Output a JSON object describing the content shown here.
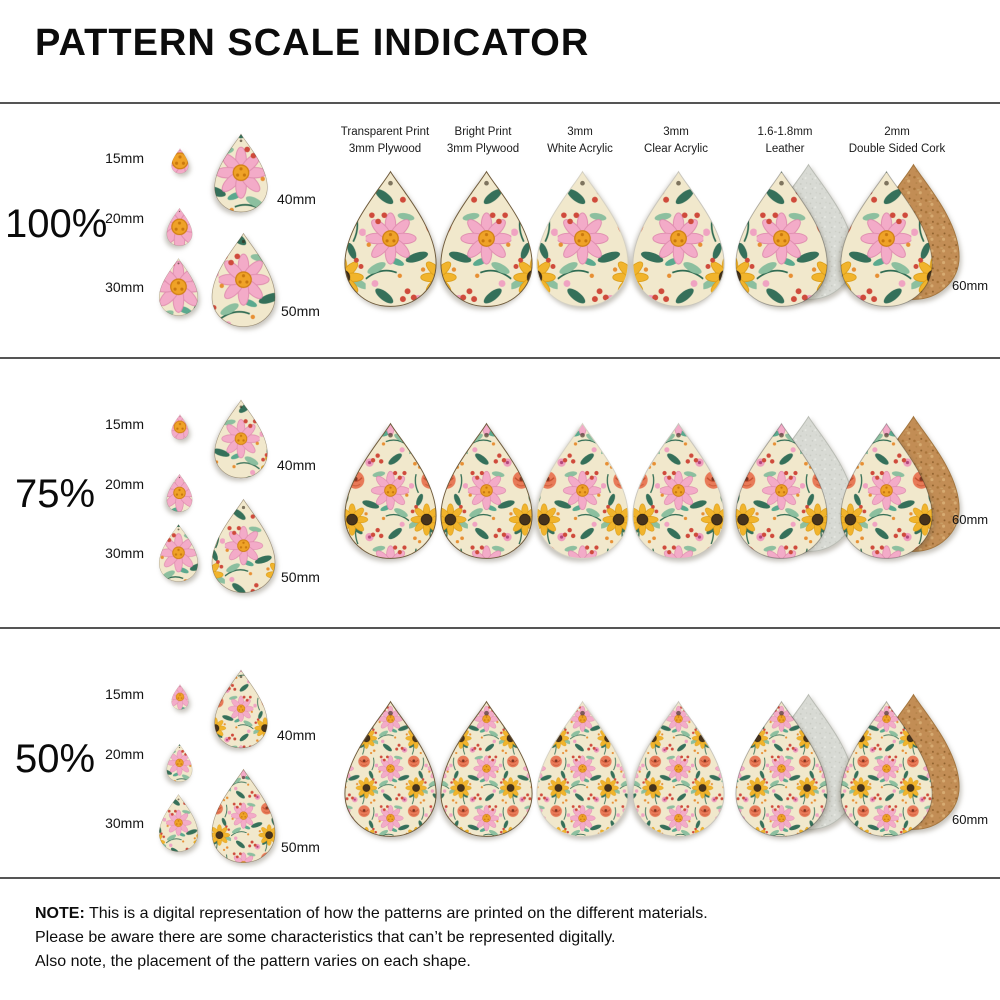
{
  "title": "PATTERN SCALE INDICATOR",
  "columns": [
    {
      "line1": "Transparent Print",
      "line2": "3mm Plywood"
    },
    {
      "line1": "Bright Print",
      "line2": "3mm Plywood"
    },
    {
      "line1": "3mm",
      "line2": "White Acrylic"
    },
    {
      "line1": "3mm",
      "line2": "Clear Acrylic"
    },
    {
      "line1": "1.6-1.8mm",
      "line2": "Leather"
    },
    {
      "line1": "2mm",
      "line2": "Double Sided Cork"
    }
  ],
  "rows": [
    {
      "scale_label": "100%",
      "scale": 1.0,
      "sizes": [
        "15mm",
        "20mm",
        "30mm",
        "40mm",
        "50mm",
        "60mm"
      ]
    },
    {
      "scale_label": "75%",
      "scale": 0.75,
      "sizes": [
        "15mm",
        "20mm",
        "30mm",
        "40mm",
        "50mm",
        "60mm"
      ]
    },
    {
      "scale_label": "50%",
      "scale": 0.5,
      "sizes": [
        "15mm",
        "20mm",
        "30mm",
        "40mm",
        "50mm",
        "60mm"
      ]
    }
  ],
  "note": {
    "label": "NOTE:",
    "line1": "This is a digital representation of how the patterns are printed on the different materials.",
    "line2": "Please be aware there are some characteristics that can’t be represented digitally.",
    "line3": "Also note, the placement of the pattern varies on each shape."
  },
  "colors": {
    "background": "#ffffff",
    "divider": "#555555",
    "pattern_cream": "#f1e8cc",
    "pattern_pink": "#f3abc8",
    "pattern_coral": "#e87a58",
    "pattern_yellow": "#f1b42c",
    "pattern_green_dark": "#35705a",
    "pattern_green_light": "#8cbf9f",
    "pattern_red_berry": "#cf4a3b",
    "leather_gray": "#d8dad4",
    "cork_tan": "#c28d55",
    "plywood_edge": "#6f5b3c"
  }
}
